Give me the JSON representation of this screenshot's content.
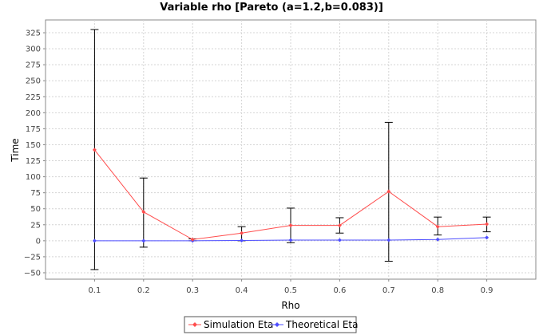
{
  "chart_data": {
    "type": "line",
    "title": "Variable rho [Pareto (a=1.2,b=0.083)]",
    "xlabel": "Rho",
    "ylabel": "Time",
    "x": [
      0.1,
      0.2,
      0.3,
      0.4,
      0.5,
      0.6,
      0.7,
      0.8,
      0.9
    ],
    "x_tick_labels": [
      "0.1",
      "0.2",
      "0.3",
      "0.4",
      "0.5",
      "0.6",
      "0.7",
      "0.8",
      "0.9"
    ],
    "xlim": [
      0.0,
      1.0
    ],
    "ylim": [
      -60,
      345
    ],
    "y_ticks": [
      -50,
      -25,
      0,
      25,
      50,
      75,
      100,
      125,
      150,
      175,
      200,
      225,
      250,
      275,
      300,
      325
    ],
    "y_tick_labels": [
      "−50",
      "−25",
      "0",
      "25",
      "50",
      "75",
      "100",
      "125",
      "150",
      "175",
      "200",
      "225",
      "250",
      "275",
      "300",
      "325"
    ],
    "grid": true,
    "legend_position": "bottom",
    "series": [
      {
        "name": "Simulation Eta",
        "color": "#ff4d4d",
        "values": [
          142,
          45,
          2,
          12,
          24,
          24,
          77,
          22,
          26
        ],
        "error_low": [
          -45,
          -10,
          0,
          0,
          -3,
          12,
          -32,
          9,
          14
        ],
        "error_high": [
          330,
          98,
          3,
          22,
          51,
          36,
          185,
          37,
          37
        ]
      },
      {
        "name": "Theoretical Eta",
        "color": "#4d4dff",
        "values": [
          0,
          0,
          0,
          0.5,
          1,
          1,
          1,
          2,
          5
        ]
      }
    ]
  }
}
